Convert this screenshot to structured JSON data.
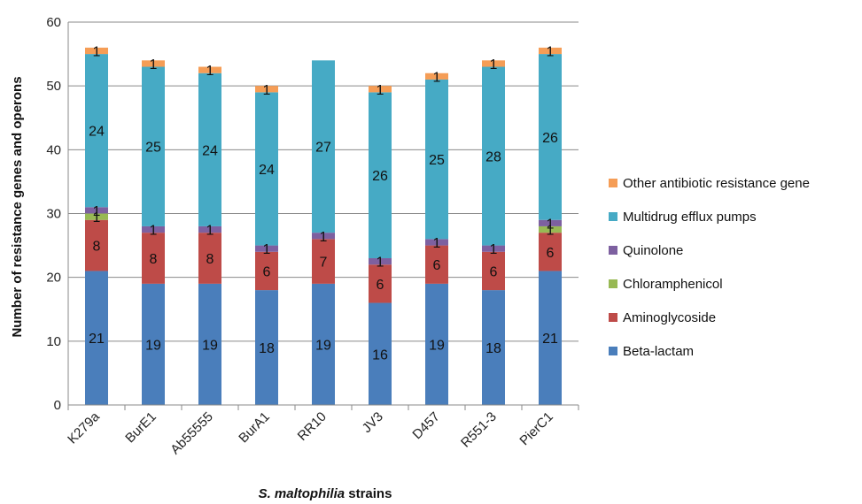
{
  "chart_data": {
    "type": "bar",
    "stacked": true,
    "categories": [
      "K279a",
      "BurE1",
      "Ab55555",
      "BurA1",
      "RR10",
      "JV3",
      "D457",
      "R551-3",
      "PierC1"
    ],
    "series": [
      {
        "name": "Beta-lactam",
        "color": "#4a7ebb",
        "values": [
          21,
          19,
          19,
          18,
          19,
          16,
          19,
          18,
          21
        ]
      },
      {
        "name": "Aminoglycoside",
        "color": "#be4b48",
        "values": [
          8,
          8,
          8,
          6,
          7,
          6,
          6,
          6,
          6
        ]
      },
      {
        "name": "Chloramphenicol",
        "color": "#98b954",
        "values": [
          1,
          0,
          0,
          0,
          0,
          0,
          0,
          0,
          1
        ]
      },
      {
        "name": "Quinolone",
        "color": "#7d60a0",
        "values": [
          1,
          1,
          1,
          1,
          1,
          1,
          1,
          1,
          1
        ]
      },
      {
        "name": "Multidrug efflux pumps",
        "color": "#46aac5",
        "values": [
          24,
          25,
          24,
          24,
          27,
          26,
          25,
          28,
          26
        ]
      },
      {
        "name": "Other antibiotic resistance gene",
        "color": "#f59d56",
        "values": [
          1,
          1,
          1,
          1,
          0,
          1,
          1,
          1,
          1
        ]
      }
    ],
    "yticks": [
      "0",
      "10",
      "20",
      "30",
      "40",
      "50",
      "60"
    ],
    "ylim": [
      0,
      60
    ],
    "ylabel": "Number of resistance genes and operons",
    "xlabel_italic": "S. maltophilia",
    "xlabel_rest": " strains",
    "grid": true,
    "legend_position": "right"
  }
}
